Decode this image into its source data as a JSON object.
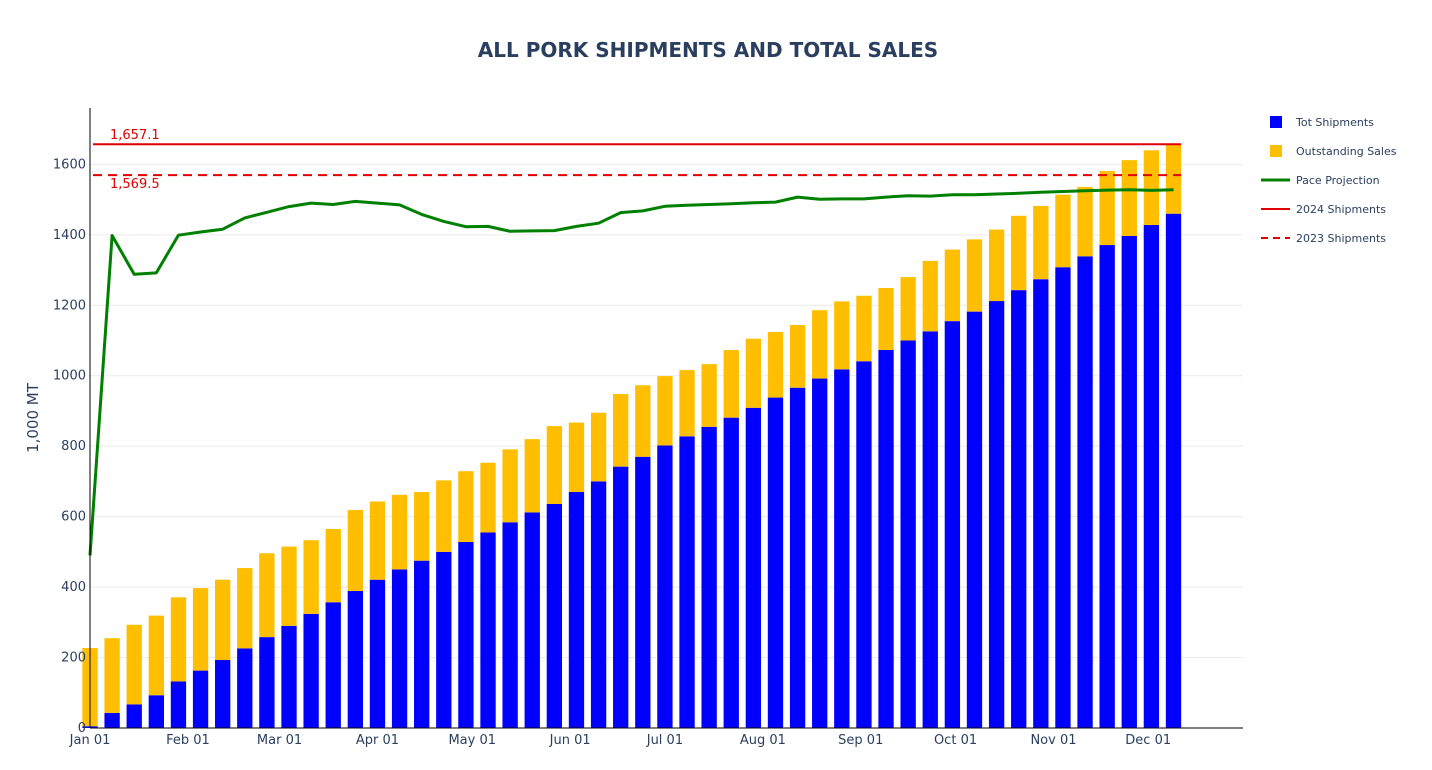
{
  "chart_data": {
    "type": "bar",
    "title": "ALL PORK SHIPMENTS AND TOTAL SALES",
    "ylabel": "1,000 MT",
    "ylim": [
      0,
      1760
    ],
    "yticks": [
      0,
      200,
      400,
      600,
      800,
      1000,
      1200,
      1400,
      1600
    ],
    "x_axis": {
      "type": "date",
      "start": "2024-01-01",
      "end": "2024-12-31",
      "ticks": [
        {
          "date": "2024-01-01",
          "label": "Jan 01"
        },
        {
          "date": "2024-02-01",
          "label": "Feb 01"
        },
        {
          "date": "2024-03-01",
          "label": "Mar 01"
        },
        {
          "date": "2024-04-01",
          "label": "Apr 01"
        },
        {
          "date": "2024-05-01",
          "label": "May 01"
        },
        {
          "date": "2024-06-01",
          "label": "Jun 01"
        },
        {
          "date": "2024-07-01",
          "label": "Jul 01"
        },
        {
          "date": "2024-08-01",
          "label": "Aug 01"
        },
        {
          "date": "2024-09-01",
          "label": "Sep 01"
        },
        {
          "date": "2024-10-01",
          "label": "Oct 01"
        },
        {
          "date": "2024-11-01",
          "label": "Nov 01"
        },
        {
          "date": "2024-12-01",
          "label": "Dec 01"
        }
      ]
    },
    "barmode": "stack",
    "grid": true,
    "legend": "right",
    "x": [
      "2024-01-01",
      "2024-01-08",
      "2024-01-15",
      "2024-01-22",
      "2024-01-29",
      "2024-02-05",
      "2024-02-12",
      "2024-02-19",
      "2024-02-26",
      "2024-03-04",
      "2024-03-11",
      "2024-03-18",
      "2024-03-25",
      "2024-04-01",
      "2024-04-08",
      "2024-04-15",
      "2024-04-22",
      "2024-04-29",
      "2024-05-06",
      "2024-05-13",
      "2024-05-20",
      "2024-05-27",
      "2024-06-03",
      "2024-06-10",
      "2024-06-17",
      "2024-06-24",
      "2024-07-01",
      "2024-07-08",
      "2024-07-15",
      "2024-07-22",
      "2024-07-29",
      "2024-08-05",
      "2024-08-12",
      "2024-08-19",
      "2024-08-26",
      "2024-09-02",
      "2024-09-09",
      "2024-09-16",
      "2024-09-23",
      "2024-09-30",
      "2024-10-07",
      "2024-10-14",
      "2024-10-21",
      "2024-10-28",
      "2024-11-04",
      "2024-11-11",
      "2024-11-18",
      "2024-11-25",
      "2024-12-02",
      "2024-12-09"
    ],
    "series": [
      {
        "name": "Tot Shipments",
        "type": "bar",
        "color": "#0000ff",
        "values": [
          5,
          43,
          67,
          93,
          132,
          163,
          193,
          226,
          258,
          290,
          324,
          357,
          389,
          421,
          450,
          475,
          500,
          528,
          555,
          584,
          612,
          636,
          670,
          700,
          742,
          770,
          802,
          828,
          855,
          881,
          909,
          938,
          966,
          992,
          1018,
          1041,
          1073,
          1100,
          1126,
          1155,
          1182,
          1212,
          1243,
          1274,
          1308,
          1339,
          1371,
          1397,
          1428,
          1460
        ]
      },
      {
        "name": "Outstanding Sales",
        "type": "bar",
        "color": "#ffbf00",
        "values": [
          222,
          212,
          226,
          226,
          239,
          234,
          228,
          228,
          238,
          225,
          209,
          208,
          230,
          222,
          212,
          195,
          203,
          201,
          198,
          207,
          208,
          221,
          197,
          195,
          206,
          203,
          197,
          188,
          178,
          192,
          196,
          186,
          178,
          194,
          193,
          186,
          176,
          180,
          200,
          203,
          205,
          203,
          211,
          208,
          206,
          197,
          210,
          215,
          212,
          197
        ]
      },
      {
        "name": "Pace Projection",
        "type": "line",
        "color": "#008000",
        "values": [
          490,
          1398,
          1288,
          1292,
          1399,
          1408,
          1416,
          1448,
          1464,
          1480,
          1490,
          1486,
          1495,
          1490,
          1485,
          1458,
          1438,
          1423,
          1424,
          1410,
          1411,
          1412,
          1424,
          1433,
          1463,
          1468,
          1481,
          1484,
          1486,
          1488,
          1491,
          1493,
          1507,
          1501,
          1502,
          1502,
          1507,
          1511,
          1510,
          1514,
          1514,
          1516,
          1518,
          1521,
          1523,
          1525,
          1527,
          1528,
          1526,
          1528
        ]
      }
    ],
    "hlines": [
      {
        "name": "2024 Shipments",
        "value": 1657.1,
        "label": "1,657.1",
        "color": "#e00000",
        "dash": "solid"
      },
      {
        "name": "2023 Shipments",
        "value": 1569.5,
        "label": "1,569.5",
        "color": "#e00000",
        "dash": "dashed"
      }
    ]
  }
}
